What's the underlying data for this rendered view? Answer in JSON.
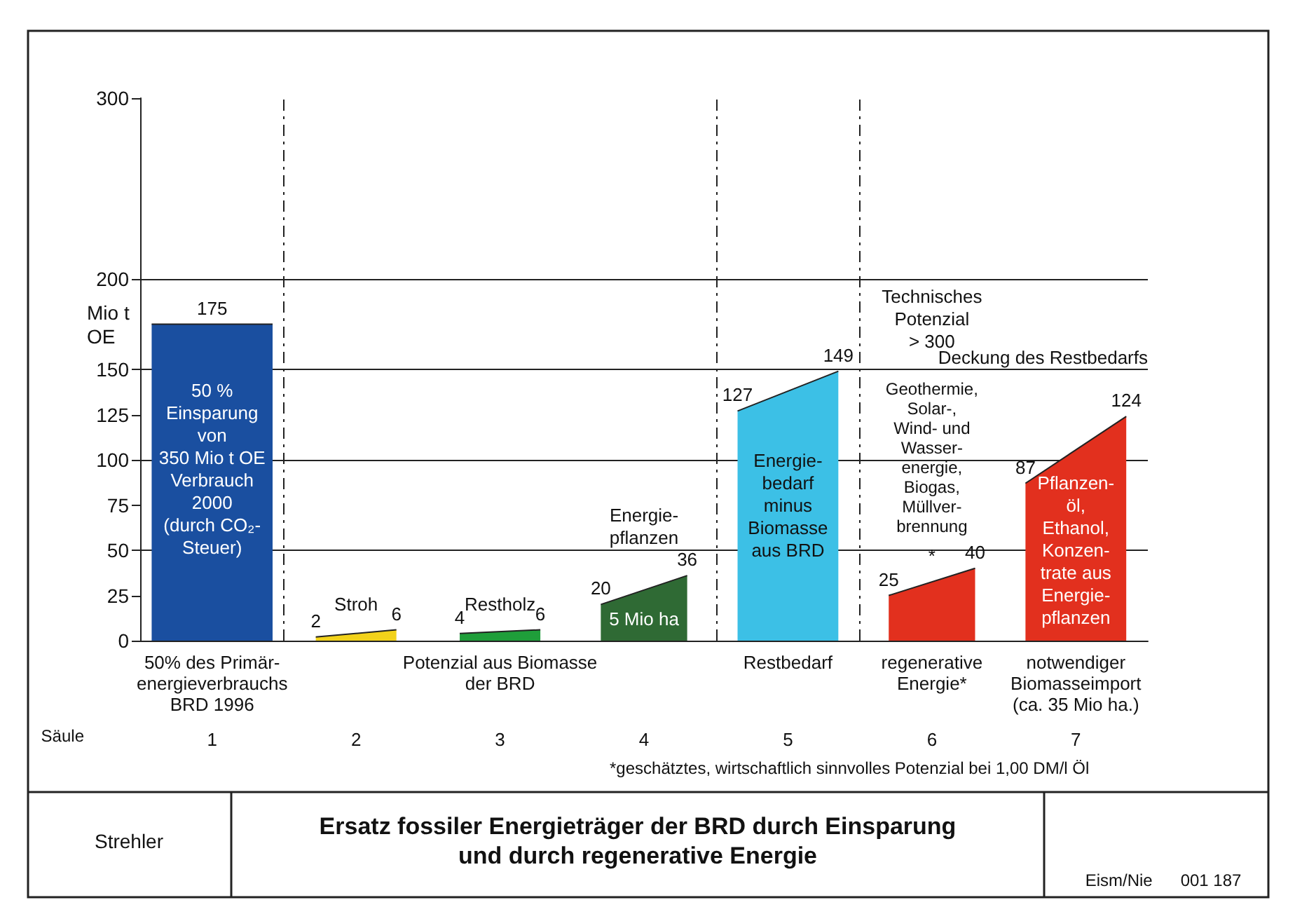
{
  "chart_data": {
    "type": "area",
    "title": "Ersatz fossiler Energieträger der BRD durch Einsparung\nund durch regenerative Energie",
    "ylabel": "Mio t OE",
    "xlabel": "Säule",
    "xlim": [
      0.5,
      7.5
    ],
    "xticks": [
      1,
      2,
      3,
      4,
      5,
      6,
      7
    ],
    "ylim": [
      0,
      300
    ],
    "yticks": [
      0,
      25,
      50,
      75,
      100,
      125,
      150,
      200,
      300
    ],
    "series": [
      {
        "color": "#1a4fa0",
        "x": [
          0.58,
          1,
          1.42
        ],
        "values": [
          175,
          175,
          175
        ],
        "value_labels": [
          null,
          "175",
          null
        ]
      },
      {
        "color": "#f2d21a",
        "x": [
          1.72,
          2.28
        ],
        "values": [
          2,
          6
        ],
        "value_labels": [
          "2",
          "6"
        ]
      },
      {
        "color": "#1f9e3a",
        "x": [
          2.72,
          3.28
        ],
        "values": [
          4,
          6
        ],
        "value_labels": [
          "4",
          "6"
        ]
      },
      {
        "color": "#2f6a34",
        "x": [
          3.7,
          4.3
        ],
        "values": [
          20,
          36
        ],
        "value_labels": [
          "20",
          "36"
        ]
      },
      {
        "color": "#3cc0e6",
        "x": [
          4.65,
          5.35
        ],
        "values": [
          127,
          149
        ],
        "value_labels": [
          "127",
          "149"
        ]
      },
      {
        "color": "#e2301e",
        "x": [
          5.7,
          6.3
        ],
        "values": [
          25,
          40
        ],
        "value_labels": [
          "25",
          "40"
        ]
      },
      {
        "color": "#e2301e",
        "x": [
          6.65,
          7.35
        ],
        "values": [
          87,
          124
        ],
        "value_labels": [
          "87",
          "124"
        ]
      }
    ],
    "ref_lines": [
      {
        "axis": "y",
        "value": 50,
        "label": null
      },
      {
        "axis": "y",
        "value": 100,
        "label": null
      },
      {
        "axis": "y",
        "value": 150,
        "label": "Deckung des Restbedarfs"
      },
      {
        "axis": "y",
        "value": 200,
        "label": null
      },
      {
        "axis": "x",
        "value": 1.5,
        "label": null,
        "line_style": "dashed"
      },
      {
        "axis": "x",
        "value": 4.5,
        "label": null,
        "line_style": "dashed"
      },
      {
        "axis": "x",
        "value": 5.5,
        "label": null,
        "line_style": "dashed"
      }
    ],
    "marker": "none",
    "grid": false,
    "annotations": [
      "*geschätztes, wirtschaftlich sinnvolles Potenzial bei 1,00 DM/l Öl",
      "Strehler",
      "Eism/Nie      001 187",
      "Stroh",
      "Restholz",
      "Energie-\npflanzen",
      "Geothermie,\nSolar-,\nWind- und\nWasser-\nenergie,\nBiogas,\nMüllver-\nbrennung",
      "*",
      "Technisches\nPotenzial\n> 300",
      "50 %\nEinsparung\nvon\n350 Mio t OE\nVerbrauch\n2000\n(durch CO₂-\nSteuer)",
      "5 Mio ha",
      "Energie-\nbedarf\nminus\nBiomasse\naus BRD",
      "Pflanzen-\nöl,\nEthanol,\nKonzen-\ntrate aus\nEnergie-\npflanzen",
      "50% des Primär-\nenergieverbrauchs\nBRD 1996",
      "Potenzial aus Biomasse\nder BRD",
      "Restbedarf",
      "regenerative\nEnergie*",
      "notwendiger\nBiomasseimport\n(ca. 35 Mio ha.)"
    ]
  }
}
